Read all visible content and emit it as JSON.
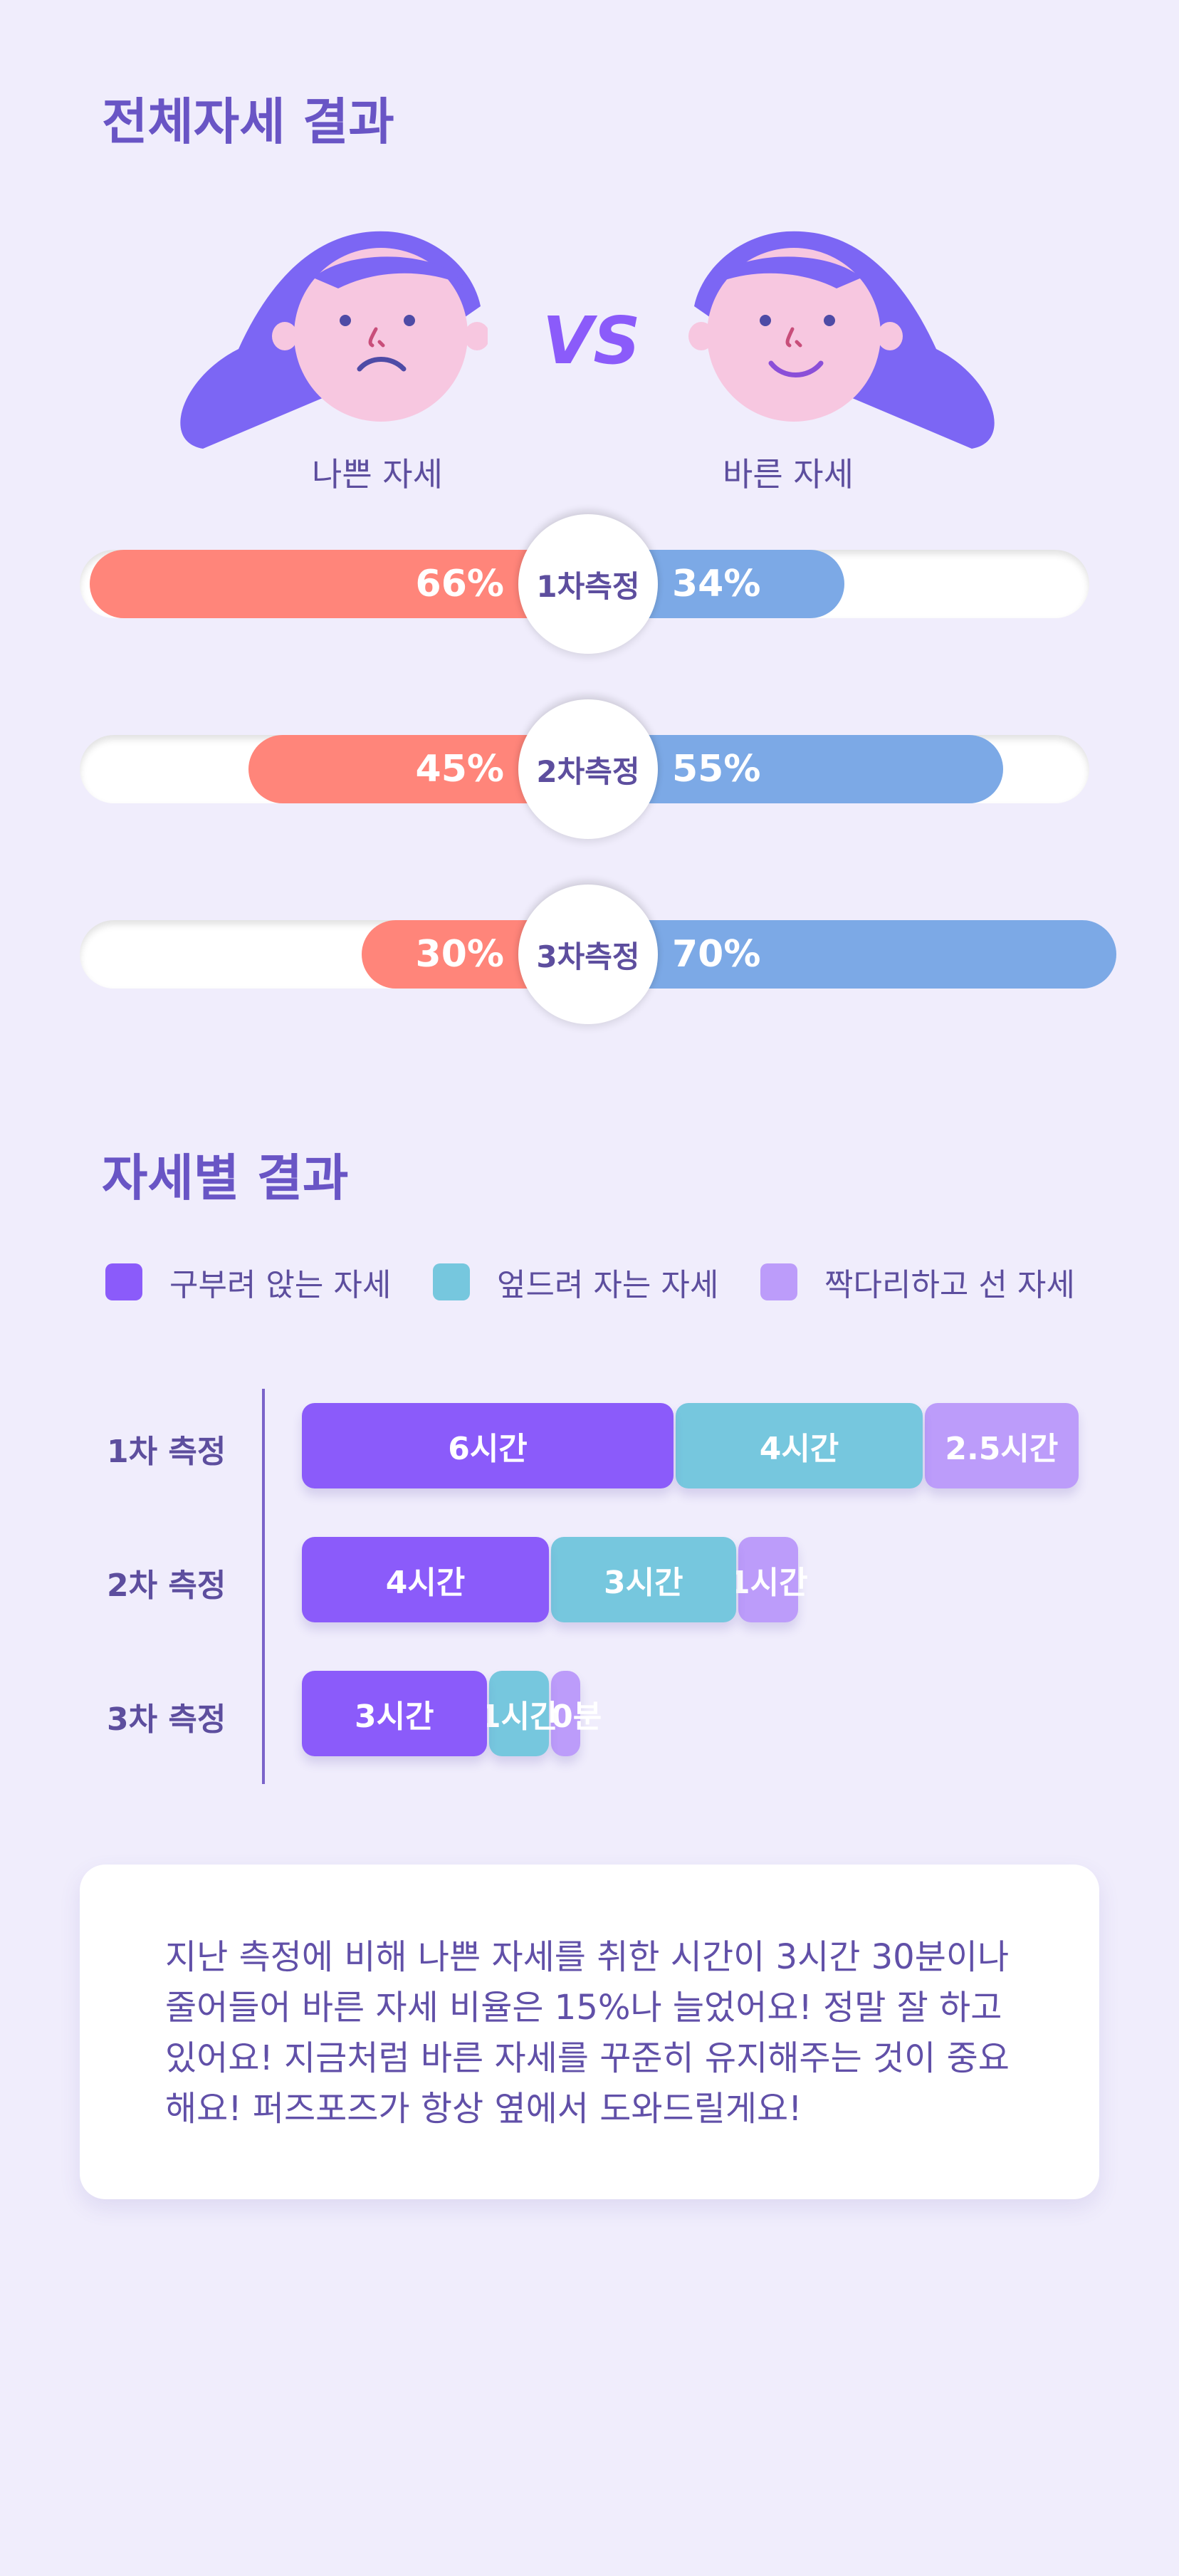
{
  "section1": {
    "title": "전체자세 결과",
    "bad_label": "나쁜 자세",
    "good_label": "바른 자세",
    "vs": "VS"
  },
  "colors": {
    "bad": "#FF857A",
    "good": "#7CA9E6",
    "hunched": "#8B5BFA",
    "prone": "#76C7DE",
    "crossed": "#BC9CFA",
    "heading": "#6955C5"
  },
  "section2": {
    "title": "자세별 결과",
    "legend": [
      "구부려 앉는 자세",
      "엎드려 자는 자세",
      "짝다리하고 선 자세"
    ]
  },
  "chart_data": [
    {
      "type": "bar",
      "stacked": true,
      "orientation": "horizontal",
      "title": "전체자세 결과",
      "categories": [
        "1차측정",
        "2차측정",
        "3차측정"
      ],
      "series": [
        {
          "name": "나쁜 자세",
          "values": [
            66,
            45,
            30
          ],
          "labels": [
            "66%",
            "45%",
            "30%"
          ]
        },
        {
          "name": "바른 자세",
          "values": [
            34,
            55,
            70
          ],
          "labels": [
            "34%",
            "55%",
            "70%"
          ]
        }
      ],
      "unit": "%",
      "legend": "top"
    },
    {
      "type": "bar",
      "stacked": true,
      "orientation": "horizontal",
      "title": "자세별 결과",
      "categories": [
        "1차 측정",
        "2차 측정",
        "3차 측정"
      ],
      "series": [
        {
          "name": "구부려 앉는 자세",
          "values": [
            6,
            4,
            3
          ],
          "labels": [
            "6시간",
            "4시간",
            "3시간"
          ]
        },
        {
          "name": "엎드려 자는 자세",
          "values": [
            4,
            3,
            1
          ],
          "labels": [
            "4시간",
            "3시간",
            "1시간"
          ]
        },
        {
          "name": "짝다리하고 선 자세",
          "values": [
            2.5,
            1,
            0.5
          ],
          "labels": [
            "2.5시간",
            "1시간",
            "30분"
          ]
        }
      ],
      "unit": "hours",
      "legend": "top-left"
    }
  ],
  "message": {
    "lines": [
      "지난 측정에 비해 나쁜 자세를 취한 시간이 3시간 30분이나",
      "줄어들어 바른 자세 비율은 15%나 늘었어요! 정말 잘 하고",
      "있어요! 지금처럼 바른 자세를 꾸준히 유지해주는 것이 중요",
      "해요! 퍼즈포즈가 항상 옆에서 도와드릴게요!"
    ]
  }
}
